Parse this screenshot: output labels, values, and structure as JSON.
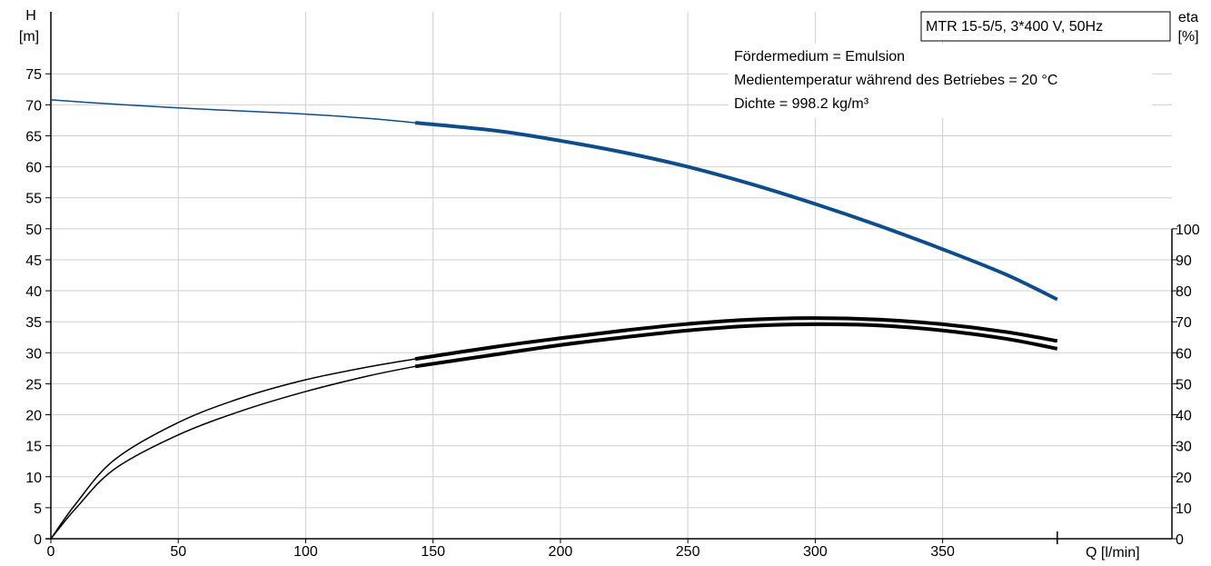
{
  "chart_data": {
    "type": "line",
    "title_box": "MTR 15-5/5, 3*400 V, 50Hz",
    "annotations": [
      "Fördermedium = Emulsion",
      "Medientemperatur während des Betriebes = 20 °C",
      "Dichte = 998.2 kg/m³"
    ],
    "x_axis": {
      "label": "Q [l/min]",
      "range": [
        0,
        440
      ],
      "ticks": [
        0,
        50,
        100,
        150,
        200,
        250,
        300,
        350
      ],
      "tick_labels": [
        "0",
        "50",
        "100",
        "150",
        "200",
        "250",
        "300",
        "350"
      ]
    },
    "y_axis_left": {
      "label_line1": "H",
      "label_line2": "[m]",
      "range": [
        0,
        85
      ],
      "ticks": [
        0,
        5,
        10,
        15,
        20,
        25,
        30,
        35,
        40,
        45,
        50,
        55,
        60,
        65,
        70,
        75
      ],
      "tick_labels": [
        "0",
        "5",
        "10",
        "15",
        "20",
        "25",
        "30",
        "35",
        "40",
        "45",
        "50",
        "55",
        "60",
        "65",
        "70",
        "75"
      ]
    },
    "y_axis_right": {
      "label_line1": "eta",
      "label_line2": "[%]",
      "range": [
        0,
        170
      ],
      "ticks": [
        0,
        10,
        20,
        30,
        40,
        50,
        60,
        70,
        80,
        90,
        100
      ],
      "tick_labels": [
        "0",
        "10",
        "20",
        "30",
        "40",
        "50",
        "60",
        "70",
        "80",
        "90",
        "100"
      ]
    },
    "x_end_marker": 395,
    "grid": true,
    "series": [
      {
        "color": "#0e4d8c",
        "axis": "left",
        "thin": [
          [
            0,
            70.8
          ],
          [
            25,
            70.1
          ],
          [
            50,
            69.5
          ],
          [
            75,
            69.0
          ],
          [
            100,
            68.5
          ],
          [
            125,
            67.8
          ],
          [
            143,
            67.1
          ]
        ],
        "thick": [
          [
            143,
            67.1
          ],
          [
            175,
            65.8
          ],
          [
            200,
            64.2
          ],
          [
            225,
            62.3
          ],
          [
            250,
            60.0
          ],
          [
            275,
            57.2
          ],
          [
            300,
            54.0
          ],
          [
            325,
            50.5
          ],
          [
            350,
            46.7
          ],
          [
            375,
            42.6
          ],
          [
            395,
            38.6
          ]
        ]
      },
      {
        "color": "#000000",
        "axis": "right",
        "thin": [
          [
            0,
            0
          ],
          [
            10,
            10
          ],
          [
            25,
            22.5
          ],
          [
            50,
            33.5
          ],
          [
            75,
            41.3
          ],
          [
            100,
            47.5
          ],
          [
            125,
            52.6
          ],
          [
            143,
            55.6
          ]
        ],
        "thick": [
          [
            143,
            55.6
          ],
          [
            175,
            59.5
          ],
          [
            200,
            62.5
          ],
          [
            225,
            65.0
          ],
          [
            250,
            67.2
          ],
          [
            275,
            68.7
          ],
          [
            300,
            69.2
          ],
          [
            325,
            68.8
          ],
          [
            350,
            67.2
          ],
          [
            375,
            64.5
          ],
          [
            395,
            61.3
          ]
        ]
      },
      {
        "color": "#000000",
        "axis": "right",
        "thin": [
          [
            0,
            0
          ],
          [
            10,
            11.5
          ],
          [
            25,
            25.5
          ],
          [
            50,
            37.5
          ],
          [
            75,
            45.5
          ],
          [
            100,
            51.3
          ],
          [
            125,
            55.5
          ],
          [
            143,
            58.0
          ]
        ],
        "thick": [
          [
            143,
            58.0
          ],
          [
            175,
            62.0
          ],
          [
            200,
            64.7
          ],
          [
            225,
            67.2
          ],
          [
            250,
            69.3
          ],
          [
            275,
            70.7
          ],
          [
            300,
            71.2
          ],
          [
            325,
            70.7
          ],
          [
            350,
            69.2
          ],
          [
            375,
            66.7
          ],
          [
            395,
            63.8
          ]
        ]
      }
    ]
  }
}
